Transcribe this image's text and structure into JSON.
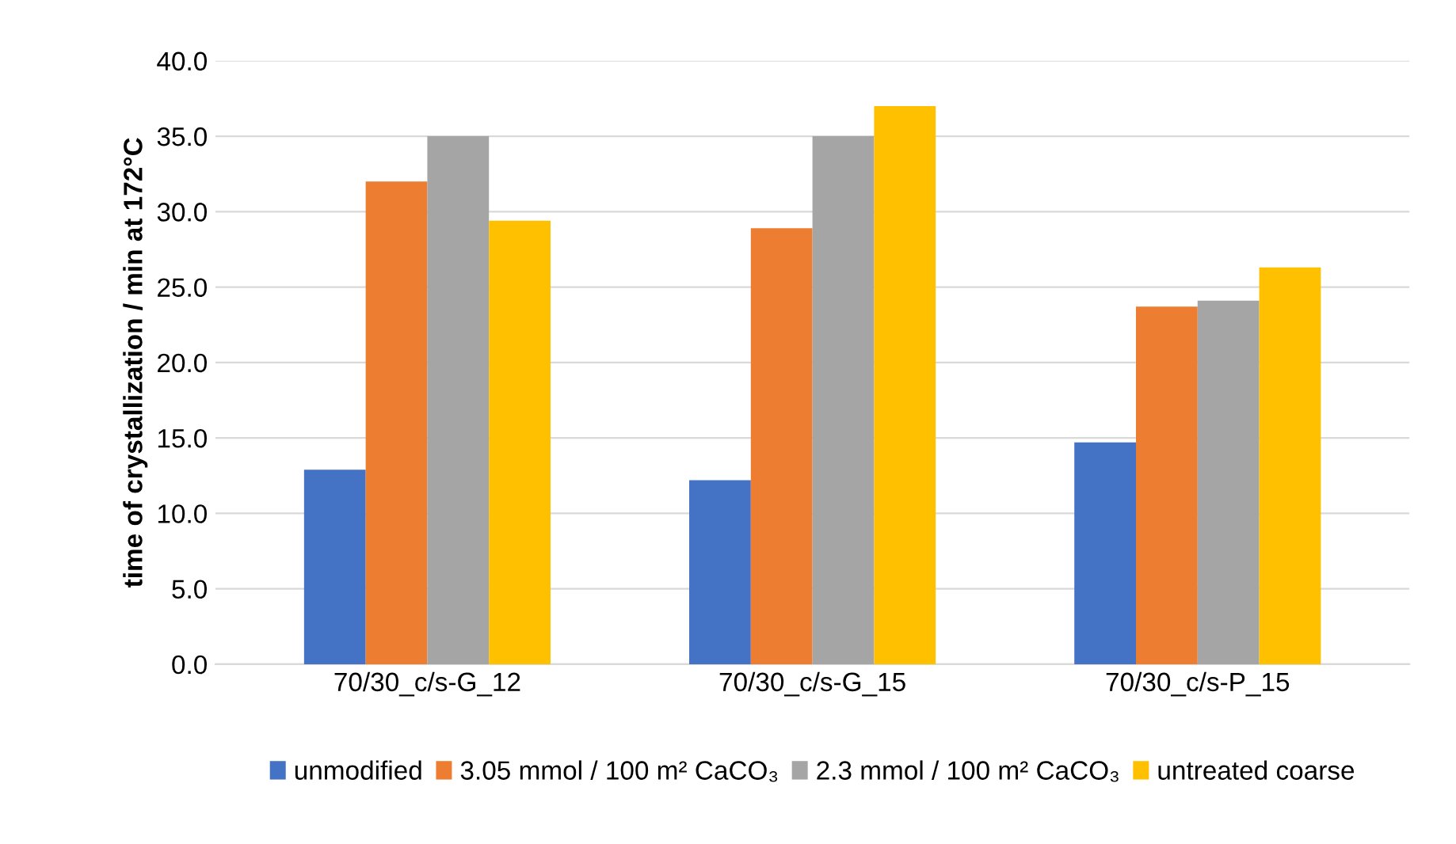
{
  "chart_data": {
    "type": "bar",
    "ylabel": "time of crystallization / min at 172°C",
    "categories": [
      "70/30_c/s-G_12",
      "70/30_c/s-G_15",
      "70/30_c/s-P_15"
    ],
    "series": [
      {
        "name": "unmodified",
        "color": "#4472c4",
        "values": [
          12.9,
          12.2,
          14.7
        ]
      },
      {
        "name": "3.05 mmol / 100 m² CaCO₃",
        "color": "#ed7d31",
        "values": [
          32.0,
          28.9,
          23.7
        ]
      },
      {
        "name": "2.3 mmol / 100 m² CaCO₃",
        "color": "#a5a5a5",
        "values": [
          35.0,
          35.0,
          24.1
        ]
      },
      {
        "name": "untreated coarse",
        "color": "#ffc000",
        "values": [
          29.4,
          37.0,
          26.3
        ]
      }
    ],
    "ylim": [
      0,
      40
    ],
    "yticks": [
      {
        "value": 0,
        "label": "0.0"
      },
      {
        "value": 5,
        "label": "5.0"
      },
      {
        "value": 10,
        "label": "10.0"
      },
      {
        "value": 15,
        "label": "15.0"
      },
      {
        "value": 20,
        "label": "20.0"
      },
      {
        "value": 25,
        "label": "25.0"
      },
      {
        "value": 30,
        "label": "30.0"
      },
      {
        "value": 35,
        "label": "35.0"
      },
      {
        "value": 40,
        "label": "40.0"
      }
    ],
    "grid": "y",
    "legend": "bottom"
  }
}
